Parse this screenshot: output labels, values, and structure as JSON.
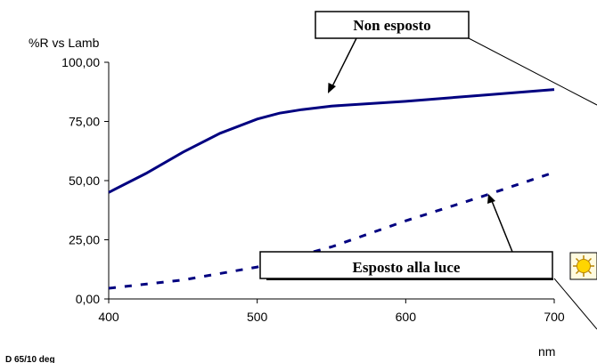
{
  "chart_data": {
    "type": "line",
    "ylabel": "%R vs Lamb",
    "xlabel": "nm",
    "xlim": [
      400,
      700
    ],
    "ylim": [
      0,
      100
    ],
    "x_ticks": [
      "400",
      "500",
      "600",
      "700"
    ],
    "y_ticks": [
      "0,00",
      "25,00",
      "50,00",
      "75,00",
      "100,00"
    ],
    "grid": false,
    "series": [
      {
        "style": "solid",
        "color": "#000080",
        "points": [
          [
            400,
            45
          ],
          [
            425,
            53
          ],
          [
            450,
            62
          ],
          [
            475,
            70
          ],
          [
            500,
            76
          ],
          [
            515,
            78.5
          ],
          [
            530,
            80
          ],
          [
            550,
            81.5
          ],
          [
            600,
            83.5
          ],
          [
            650,
            86
          ],
          [
            700,
            88.5
          ]
        ]
      },
      {
        "style": "dashed",
        "color": "#000080",
        "points": [
          [
            400,
            4.5
          ],
          [
            450,
            8
          ],
          [
            500,
            13.5
          ],
          [
            550,
            22
          ],
          [
            600,
            33
          ],
          [
            650,
            43
          ],
          [
            700,
            53.5
          ]
        ]
      }
    ],
    "annotations": [
      {
        "text": "Non esposto",
        "target_series": 0
      },
      {
        "text": "Esposto alla luce",
        "target_series": 1
      }
    ],
    "footnote": "D 65/10 deg"
  }
}
